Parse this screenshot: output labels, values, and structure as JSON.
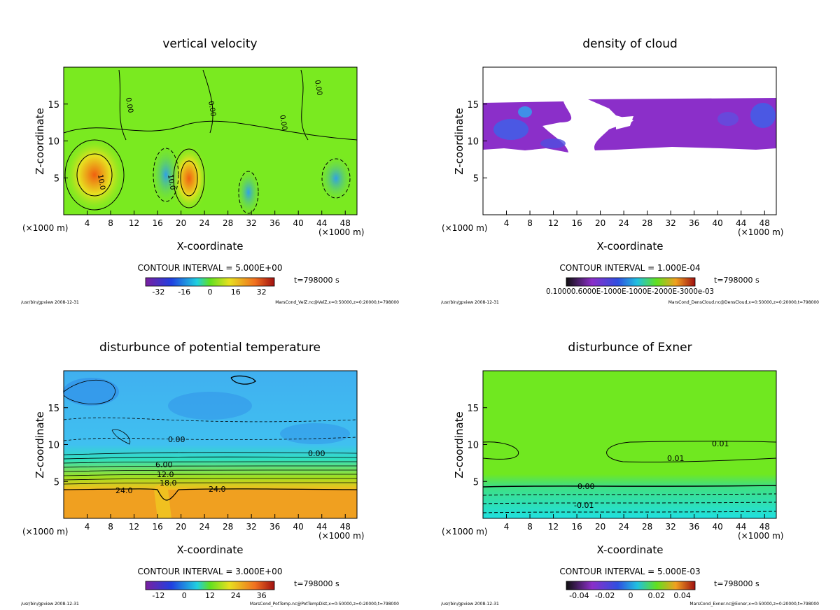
{
  "page": {
    "program_path": "/usr/bin/gpview",
    "program_date": "2008-12-31"
  },
  "colors": {
    "cyan": "#20e8e0",
    "green": "#7aea20",
    "orange": "#f0a020",
    "purple": "#8b2fc9",
    "blue": "#2f6fe0"
  },
  "chart_data": [
    {
      "type": "heatmap",
      "title": "vertical velocity",
      "xlabel": "X-coordinate",
      "ylabel": "Z-coordinate",
      "x_unit": "(×1000 m)",
      "xlim": [
        0,
        50
      ],
      "ylim": [
        0,
        20
      ],
      "xticks": [
        "4",
        "8",
        "12",
        "16",
        "20",
        "24",
        "28",
        "32",
        "36",
        "40",
        "44",
        "48"
      ],
      "yticks": [
        "5",
        "10",
        "15"
      ],
      "contour_interval": "CONTOUR INTERVAL = 5.000E+00",
      "time": "t=798000 s",
      "colorbar_ticks": [
        "-32",
        "-16",
        "0",
        "16",
        "32"
      ],
      "colorbar_range": [
        -40,
        40
      ],
      "contour_labels": [
        "10.0",
        "10.0",
        "0.00",
        "0.00",
        "0.00",
        "0.00"
      ],
      "source": "MarsCond_VelZ.nc@VelZ,x=0:50000,z=0:20000,t=798000"
    },
    {
      "type": "heatmap",
      "title": "density of cloud",
      "xlabel": "X-coordinate",
      "ylabel": "Z-coordinate",
      "x_unit": "(×1000 m)",
      "xlim": [
        0,
        50
      ],
      "ylim": [
        0,
        20
      ],
      "xticks": [
        "4",
        "8",
        "12",
        "16",
        "20",
        "24",
        "28",
        "32",
        "36",
        "40",
        "44",
        "48"
      ],
      "yticks": [
        "5",
        "10",
        "15"
      ],
      "contour_interval": "CONTOUR INTERVAL = 1.000E-04",
      "time": "t=798000 s",
      "colorbar_ticks": [
        "0.10000.6000E-1000E-1000E-2000E-3000e-03"
      ],
      "source": "MarsCond_DensCloud.nc@DensCloud,x=0:50000,z=0:20000,t=798000"
    },
    {
      "type": "heatmap",
      "title": "disturbunce of potential temperature",
      "xlabel": "X-coordinate",
      "ylabel": "Z-coordinate",
      "x_unit": "(×1000 m)",
      "xlim": [
        0,
        50
      ],
      "ylim": [
        0,
        20
      ],
      "xticks": [
        "4",
        "8",
        "12",
        "16",
        "20",
        "24",
        "28",
        "32",
        "36",
        "40",
        "44",
        "48"
      ],
      "yticks": [
        "5",
        "10",
        "15"
      ],
      "contour_interval": "CONTOUR INTERVAL = 3.000E+00",
      "time": "t=798000 s",
      "colorbar_ticks": [
        "-12",
        "0",
        "12",
        "24",
        "36"
      ],
      "colorbar_range": [
        -18,
        42
      ],
      "contour_labels": [
        "24.0",
        "24.0",
        "18.0",
        "12.0",
        "6.00",
        "0.00",
        "0.00"
      ],
      "source": "MarsCond_PotTemp.nc@PotTempDist,x=0:50000,z=0:20000,t=798000"
    },
    {
      "type": "heatmap",
      "title": "disturbunce of Exner",
      "xlabel": "X-coordinate",
      "ylabel": "Z-coordinate",
      "x_unit": "(×1000 m)",
      "xlim": [
        0,
        50
      ],
      "ylim": [
        0,
        20
      ],
      "xticks": [
        "4",
        "8",
        "12",
        "16",
        "20",
        "24",
        "28",
        "32",
        "36",
        "40",
        "44",
        "48"
      ],
      "yticks": [
        "5",
        "10",
        "15"
      ],
      "contour_interval": "CONTOUR INTERVAL = 5.000E-03",
      "time": "t=798000 s",
      "colorbar_ticks": [
        "-0.04",
        "-0.02",
        "0",
        "0.02",
        "0.04"
      ],
      "colorbar_range": [
        -0.05,
        0.05
      ],
      "contour_labels": [
        "0.01",
        "0.01",
        "0.00",
        "-0.01"
      ],
      "source": "MarsCond_Exner.nc@Exner,x=0:50000,z=0:20000,t=798000"
    }
  ]
}
